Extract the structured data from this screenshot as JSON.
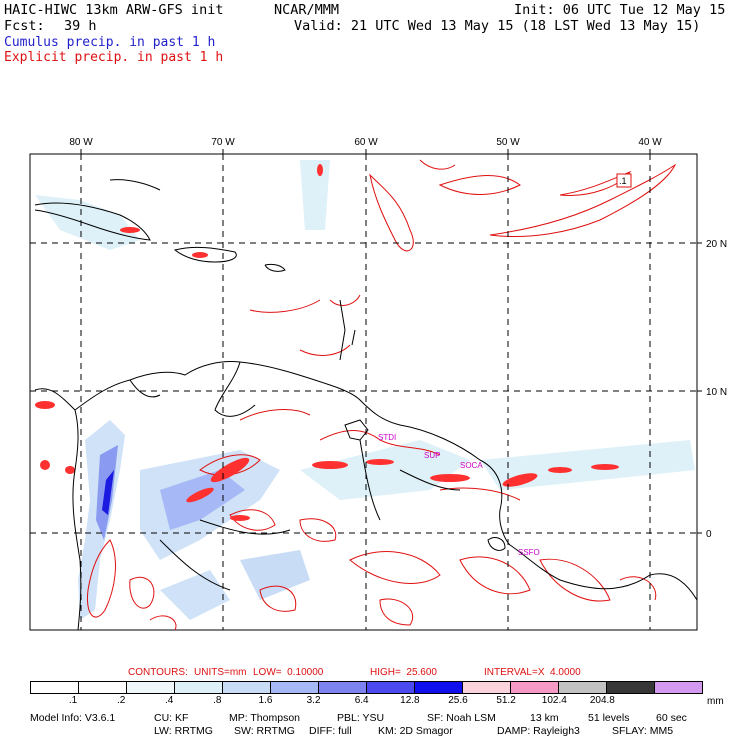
{
  "header": {
    "model": "HAIC-HIWC 13km ARW-GFS init",
    "org": "NCAR/MMM",
    "init": "Init: 06 UTC Tue 12 May 15",
    "fcst_label": "Fcst:",
    "fcst_value": "39 h",
    "valid": "Valid: 21 UTC Wed 13 May 15 (18 LST Wed 13 May 15)",
    "cumulus": "Cumulus precip. in past 1 h",
    "explicit": "Explicit precip. in past 1 h"
  },
  "map": {
    "lon_labels": [
      "80 W",
      "70 W",
      "60 W",
      "50 W",
      "40 W"
    ],
    "lat_labels": [
      "20 N",
      "10 N",
      "0"
    ],
    "stations": [
      "STDI",
      "SUP",
      "SOCA",
      "SSFO"
    ],
    "max_marker": ".1",
    "colors": {
      "explicit_contour": "#e01010",
      "cumulus_light": "#cfe2f7",
      "cumulus_mid": "#8a9af0",
      "cumulus_dark": "#1a1ae0",
      "explicit_fill": "#ff3030",
      "coast": "#000000",
      "grid": "#000000"
    }
  },
  "contours": {
    "label": "CONTOURS:",
    "units": "UNITS=mm",
    "low": "LOW=  0.10000",
    "high": "HIGH=  25.600",
    "interval": "INTERVAL=X  4.0000"
  },
  "colorbar": {
    "unit": "mm",
    "levels": [
      ".1",
      ".2",
      ".4",
      ".8",
      "1.6",
      "3.2",
      "6.4",
      "12.8",
      "25.6",
      "51.2",
      "102.4",
      "204.8"
    ],
    "colors": [
      "#ffffff",
      "#ffffff",
      "#f1f8fb",
      "#def1f8",
      "#c9dcf6",
      "#a6b8f5",
      "#7d84f0",
      "#4b4aee",
      "#1010ee",
      "#fbd3dc",
      "#f59ac4",
      "#c2c2c2",
      "#373737",
      "#d49af0"
    ]
  },
  "model_info": {
    "line1": [
      "Model Info: V3.6.1",
      "CU: KF",
      "MP: Thompson",
      "PBL: YSU",
      "SF: Noah LSM",
      "13 km",
      "51 levels",
      "60 sec"
    ],
    "line2": [
      "LW: RRTMG",
      "SW: RRTMG",
      "DIFF: full",
      "KM: 2D Smagor",
      "DAMP: Rayleigh3",
      "SFLAY: MM5"
    ]
  }
}
